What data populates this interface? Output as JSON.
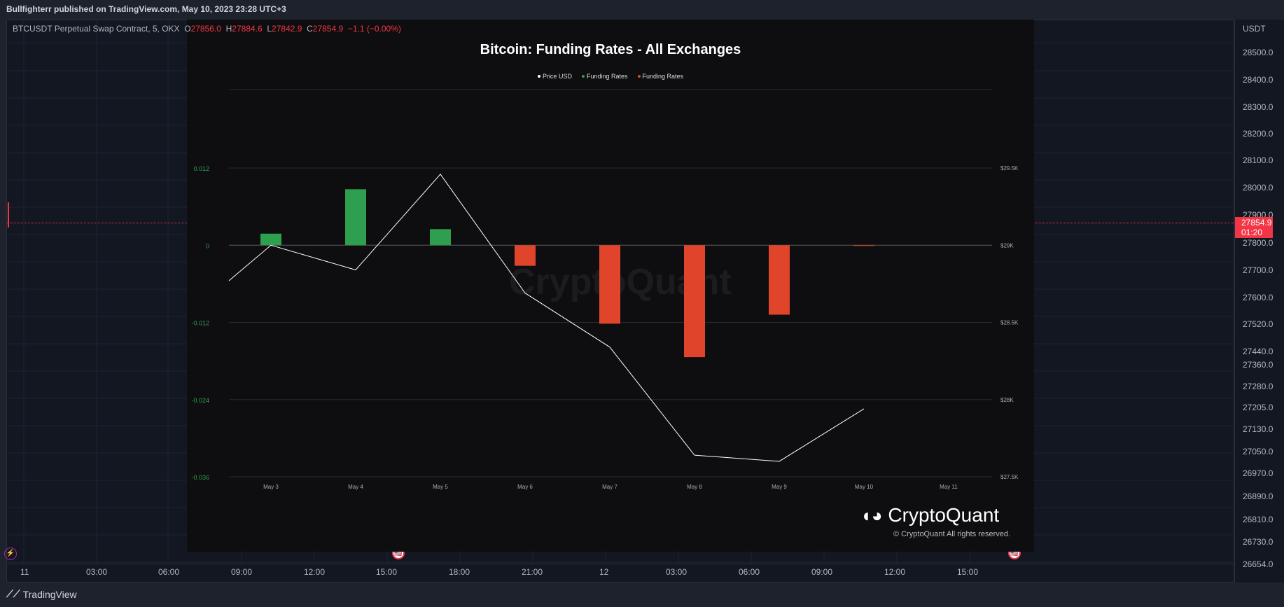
{
  "publisher": "Bullfighterr published on TradingView.com, May 10, 2023 23:28 UTC+3",
  "symbol": {
    "name": "BTCUSDT Perpetual Swap Contract, 5, OKX",
    "o_label": "O",
    "o": "27856.0",
    "h_label": "H",
    "h": "27884.6",
    "l_label": "L",
    "l": "27842.9",
    "c_label": "C",
    "c": "27854.9",
    "change": "−1.1 (−0.00%)"
  },
  "price_axis": {
    "currency": "USDT",
    "labels": [
      "28500.0",
      "28400.0",
      "28300.0",
      "28200.0",
      "28100.0",
      "28000.0",
      "27900.0",
      "27800.0",
      "27700.0",
      "27600.0",
      "27520.0",
      "27440.0",
      "27360.0",
      "27280.0",
      "27205.0",
      "27130.0",
      "27050.0",
      "26970.0",
      "26890.0",
      "26810.0",
      "26730.0",
      "26654.0"
    ],
    "last_price": "27854.9",
    "countdown": "01:20"
  },
  "time_axis": [
    "11",
    "03:00",
    "06:00",
    "09:00",
    "12:00",
    "15:00",
    "18:00",
    "21:00",
    "12",
    "03:00",
    "06:00",
    "09:00",
    "12:00",
    "15:00"
  ],
  "footer": {
    "brand": "TradingView"
  },
  "colors": {
    "positive": "#2e9e4f",
    "negative": "#e0452b",
    "price_line": "#ffffff",
    "tv_red": "#f23645"
  },
  "cryptoquant": {
    "watermark": "CryptoQuant",
    "brand": "CryptoQuant",
    "copyright": "© CryptoQuant All rights reserved."
  },
  "chart_data": {
    "type": "bar",
    "title": "Bitcoin: Funding Rates - All Exchanges",
    "legend": [
      "Price USD",
      "Funding Rates",
      "Funding Rates"
    ],
    "categories": [
      "May 3",
      "May 4",
      "May 5",
      "May 6",
      "May 7",
      "May 8",
      "May 9",
      "May 10",
      "May 11"
    ],
    "series": [
      {
        "name": "Funding Rates",
        "axis": "left",
        "values": [
          0.0018,
          0.0087,
          0.0025,
          -0.0032,
          -0.0122,
          -0.0174,
          -0.0108,
          -0.0001,
          null
        ]
      },
      {
        "name": "Price USD",
        "axis": "right",
        "kind": "line",
        "x": [
          "May 2",
          "May 3",
          "May 4",
          "May 5",
          "May 6",
          "May 7",
          "May 8",
          "May 9",
          "May 10"
        ],
        "values": [
          28770,
          29000,
          28840,
          29460,
          28690,
          28340,
          27640,
          27600,
          27940
        ]
      }
    ],
    "left_ticks": [
      "0.012",
      "0",
      "-0.012",
      "-0.024",
      "-0.036"
    ],
    "right_ticks": [
      "$29.5K",
      "$29K",
      "$28.5K",
      "$28K",
      "$27.5K"
    ],
    "ylim_left": [
      -0.036,
      0.012
    ],
    "ylim_right": [
      27500,
      29500
    ],
    "grid": true
  }
}
